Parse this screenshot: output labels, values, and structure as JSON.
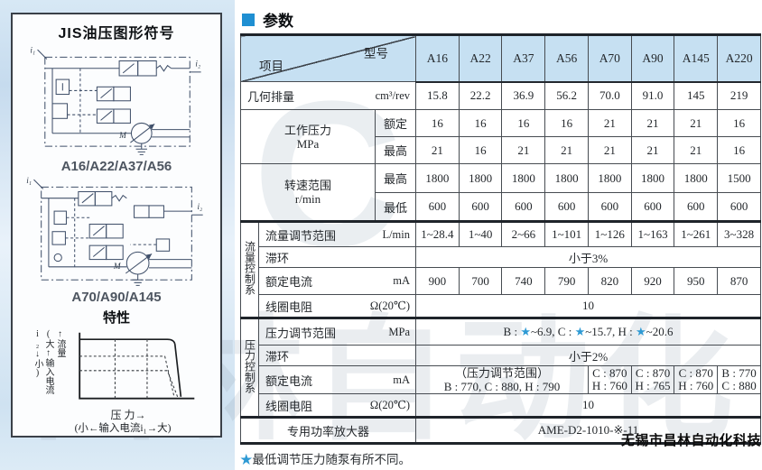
{
  "page": {
    "section_title": "参数",
    "footnote": {
      "star": "★",
      "text": "最低调节压力随泵有所不同。"
    },
    "brand": "无锡市昌林自动化科技",
    "watermark": {
      "letter": "C",
      "text": "昌林自动化"
    }
  },
  "left_panel": {
    "title": "JIS油压图形符号",
    "diagram1": {
      "caption": "A16/A22/A37/A56",
      "i1": "i₁",
      "i2": "i₂",
      "m": "M"
    },
    "diagram2": {
      "caption": "A70/A90/A145",
      "i1": "i₁",
      "i2": "i₂",
      "m": "M"
    },
    "characteristics": {
      "title": "特性",
      "y_outer_label": "(大↑输入电流i₂↓小)",
      "y_inner_label": "↑流量",
      "x_label": "压 力→",
      "x_sub_label": "(小←输入电流i₁→大)"
    }
  },
  "table": {
    "corner": {
      "top_right": "型号",
      "bottom_left": "项目"
    },
    "models": [
      "A16",
      "A22",
      "A37",
      "A56",
      "A70",
      "A90",
      "A145",
      "A220"
    ],
    "displacement": {
      "label": "几何排量",
      "unit": "cm³/rev",
      "values": [
        "15.8",
        "22.2",
        "36.9",
        "56.2",
        "70.0",
        "91.0",
        "145",
        "219"
      ]
    },
    "working_pressure": {
      "label": "工作压力",
      "unit": "MPa",
      "rated": {
        "label": "额定",
        "values": [
          "16",
          "16",
          "16",
          "16",
          "21",
          "21",
          "21",
          "16"
        ]
      },
      "max": {
        "label": "最高",
        "values": [
          "21",
          "16",
          "21",
          "21",
          "21",
          "21",
          "21",
          "16"
        ]
      }
    },
    "speed_range": {
      "label": "转速范围",
      "unit": "r/min",
      "max": {
        "label": "最高",
        "values": [
          "1800",
          "1800",
          "1800",
          "1800",
          "1800",
          "1800",
          "1800",
          "1500"
        ]
      },
      "min": {
        "label": "最低",
        "values": [
          "600",
          "600",
          "600",
          "600",
          "600",
          "600",
          "600",
          "600"
        ]
      }
    },
    "flow_control": {
      "group_label": "流量控制系",
      "flow_range": {
        "label": "流量调节范围",
        "unit": "L/min",
        "values": [
          "1~28.4",
          "1~40",
          "2~66",
          "1~101",
          "1~126",
          "1~163",
          "1~261",
          "3~328"
        ]
      },
      "hysteresis": {
        "label": "滞环",
        "value": "小于3%"
      },
      "rated_current": {
        "label": "额定电流",
        "unit": "mA",
        "values": [
          "900",
          "700",
          "740",
          "790",
          "820",
          "920",
          "950",
          "870"
        ]
      },
      "coil_resistance": {
        "label": "线圈电阻",
        "unit": "Ω(20℃)",
        "value": "10"
      }
    },
    "pressure_control": {
      "group_label": "压力控制系",
      "pressure_range": {
        "label": "压力调节范围",
        "unit": "MPa",
        "value": "B : ★~6.9,  C : ★~15.7,  H : ★~20.6"
      },
      "hysteresis": {
        "label": "滞环",
        "value": "小于2%"
      },
      "rated_current": {
        "label": "额定电流",
        "unit": "mA",
        "span_line1": "（压力调节范围）",
        "span_line2": "B : 770, C : 880, H : 790",
        "cells": [
          {
            "line1": "C : 870",
            "line2": "H : 760"
          },
          {
            "line1": "C : 870",
            "line2": "H : 765"
          },
          {
            "line1": "C : 870",
            "line2": "H : 760"
          },
          {
            "line1": "B : 770",
            "line2": "C : 880"
          }
        ]
      },
      "coil_resistance": {
        "label": "线圈电阻",
        "unit": "Ω(20℃)",
        "value": "10"
      }
    },
    "amplifier": {
      "label": "专用功率放大器",
      "value": "AME-D2-1010-※-11"
    }
  }
}
